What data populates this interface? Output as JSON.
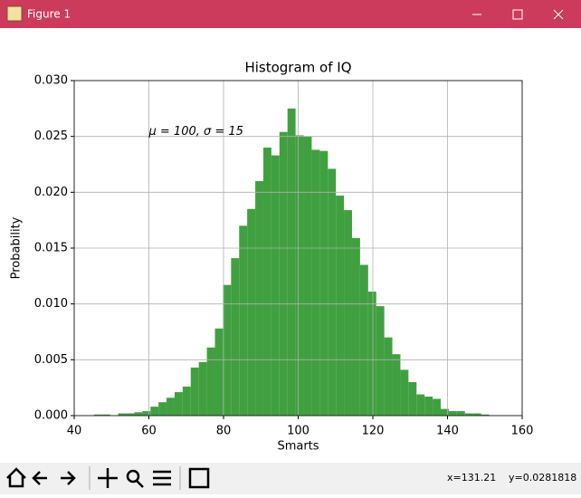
{
  "window": {
    "title": "Figure 1",
    "status_x": "x=131.21",
    "status_y": "y=0.0281818"
  },
  "chart_data": {
    "type": "histogram",
    "title": "Histogram of IQ",
    "xlabel": "Smarts",
    "ylabel": "Probability",
    "annotation": "μ = 100,  σ = 15",
    "annotation_at": [
      60,
      0.025
    ],
    "bins": [
      45.3,
      47.46,
      49.62,
      51.78,
      53.94,
      56.1,
      58.26,
      60.42,
      62.58,
      64.74,
      66.9,
      69.06,
      71.22,
      73.38,
      75.54,
      77.7,
      79.86,
      82.02,
      84.18,
      86.34,
      88.5,
      90.66,
      92.82,
      94.98,
      97.14,
      99.3,
      101.46,
      103.62,
      105.78,
      107.94,
      110.1,
      112.26,
      114.42,
      116.58,
      118.74,
      120.9,
      123.06,
      125.22,
      127.38,
      129.54,
      131.7,
      133.86,
      136.02,
      138.18,
      140.34,
      142.5,
      144.66,
      146.82,
      148.98,
      151.14,
      153.3
    ],
    "values": [
      0.0001,
      0.0001,
      0,
      0.0002,
      0.0002,
      0.0003,
      0.0004,
      0.0008,
      0.0012,
      0.0016,
      0.0021,
      0.0026,
      0.0043,
      0.0048,
      0.0061,
      0.0078,
      0.0117,
      0.0141,
      0.017,
      0.0185,
      0.021,
      0.024,
      0.0233,
      0.0254,
      0.0275,
      0.0251,
      0.025,
      0.0238,
      0.0237,
      0.0221,
      0.0197,
      0.0184,
      0.0159,
      0.0135,
      0.0111,
      0.0098,
      0.007,
      0.0055,
      0.0041,
      0.003,
      0.0019,
      0.0017,
      0.0015,
      0.0006,
      0.0004,
      0.0004,
      0.0002,
      0.0002,
      0.0001,
      0
    ],
    "color": "#40a040",
    "grid": true,
    "xlim": [
      40,
      160
    ],
    "xticks": [
      40,
      60,
      80,
      100,
      120,
      140,
      160
    ],
    "ylim": [
      0,
      0.03
    ],
    "yticks": [
      {
        "value": 0,
        "label": "0.000"
      },
      {
        "value": 0.005,
        "label": "0.005"
      },
      {
        "value": 0.01,
        "label": "0.010"
      },
      {
        "value": 0.015,
        "label": "0.015"
      },
      {
        "value": 0.02,
        "label": "0.020"
      },
      {
        "value": 0.025,
        "label": "0.025"
      },
      {
        "value": 0.03,
        "label": "0.030"
      }
    ]
  }
}
